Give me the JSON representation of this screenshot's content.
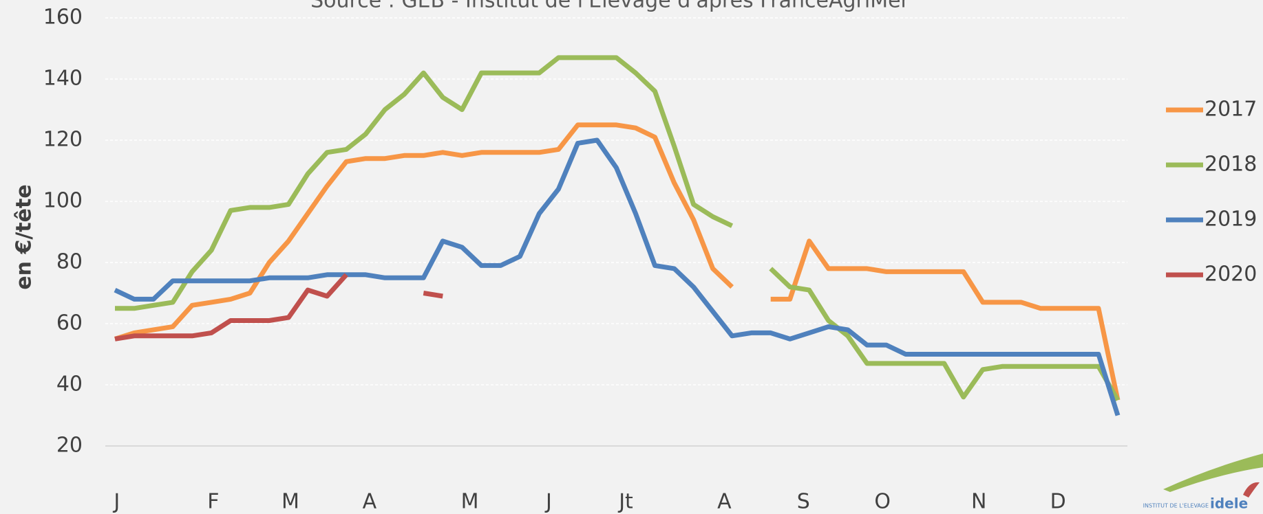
{
  "chart_data": {
    "type": "line",
    "title": "Source : GEB - Institut de l'Elevage d'après FranceAgriMer",
    "y_label": "en €/tête",
    "x": [
      1,
      2,
      3,
      4,
      5,
      6,
      7,
      8,
      9,
      10,
      11,
      12,
      13,
      14,
      15,
      16,
      17,
      18,
      19,
      20,
      21,
      22,
      23,
      24,
      25,
      26,
      27,
      28,
      29,
      30,
      31,
      32,
      33,
      34,
      35,
      36,
      37,
      38,
      39,
      40,
      41,
      42,
      43,
      44,
      45,
      46,
      47,
      48,
      49,
      50,
      51,
      52,
      53
    ],
    "xlim": [
      0.5,
      53.5
    ],
    "xticks": [
      {
        "value": 1.1,
        "label": "J"
      },
      {
        "value": 6.1,
        "label": "F"
      },
      {
        "value": 10.1,
        "label": "M"
      },
      {
        "value": 14.2,
        "label": "A"
      },
      {
        "value": 19.4,
        "label": "M"
      },
      {
        "value": 23.5,
        "label": "J"
      },
      {
        "value": 27.5,
        "label": "Jt"
      },
      {
        "value": 32.6,
        "label": "A"
      },
      {
        "value": 36.7,
        "label": "S"
      },
      {
        "value": 40.8,
        "label": "O"
      },
      {
        "value": 45.8,
        "label": "N"
      },
      {
        "value": 49.9,
        "label": "D"
      }
    ],
    "ylim": [
      20,
      160
    ],
    "yticks": [
      20,
      40,
      60,
      80,
      100,
      120,
      140,
      160
    ],
    "grid": true,
    "legend": "right",
    "series": [
      {
        "name": "2017",
        "color": "#f79646",
        "values": [
          55,
          57,
          58,
          59,
          66,
          67,
          68,
          70,
          80,
          87,
          96,
          105,
          113,
          114,
          114,
          115,
          115,
          116,
          115,
          116,
          116,
          116,
          116,
          117,
          125,
          125,
          125,
          124,
          121,
          106,
          94,
          78,
          72,
          null,
          68,
          68,
          87,
          78,
          78,
          78,
          77,
          77,
          77,
          77,
          77,
          67,
          67,
          67,
          65,
          65,
          65,
          65,
          35
        ]
      },
      {
        "name": "2018",
        "color": "#9bbb59",
        "values": [
          65,
          65,
          66,
          67,
          77,
          84,
          97,
          98,
          98,
          99,
          109,
          116,
          117,
          122,
          130,
          135,
          142,
          134,
          130,
          142,
          142,
          142,
          142,
          147,
          147,
          147,
          147,
          142,
          136,
          118,
          99,
          95,
          92,
          null,
          78,
          72,
          71,
          61,
          56,
          47,
          47,
          47,
          47,
          47,
          36,
          45,
          46,
          46,
          46,
          46,
          46,
          46,
          35
        ]
      },
      {
        "name": "2019",
        "color": "#4f81bd",
        "values": [
          71,
          68,
          68,
          74,
          74,
          74,
          74,
          74,
          75,
          75,
          75,
          76,
          76,
          76,
          75,
          75,
          75,
          87,
          85,
          79,
          79,
          82,
          96,
          104,
          119,
          120,
          111,
          96,
          79,
          78,
          72,
          64,
          56,
          57,
          57,
          55,
          57,
          59,
          58,
          53,
          53,
          50,
          50,
          50,
          50,
          50,
          50,
          50,
          50,
          50,
          50,
          50,
          30
        ]
      },
      {
        "name": "2020",
        "color": "#c0504d",
        "values": [
          55,
          56,
          56,
          56,
          56,
          57,
          61,
          61,
          61,
          62,
          71,
          69,
          76,
          null,
          null,
          null,
          70,
          69,
          null,
          null,
          null,
          null,
          null,
          null,
          null,
          null,
          null,
          null,
          null,
          null,
          null,
          null,
          null,
          null,
          null,
          null,
          null,
          null,
          null,
          null,
          null,
          null,
          null,
          null,
          null,
          null,
          null,
          null,
          null,
          null,
          null,
          null,
          null
        ]
      }
    ]
  },
  "logo": {
    "small": "INSTITUT DE L'ELEVAGE",
    "name": "idele"
  }
}
